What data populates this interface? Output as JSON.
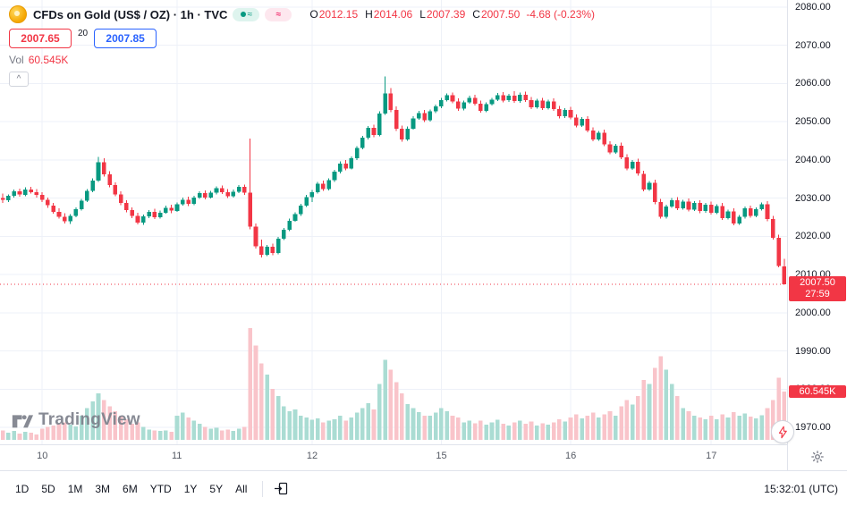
{
  "header": {
    "symbol_title": "CFDs on Gold (US$ / OZ) · 1h · TVC",
    "ohlc": {
      "o_label": "O",
      "o": "2012.15",
      "h_label": "H",
      "h": "2014.06",
      "l_label": "L",
      "l": "2007.39",
      "c_label": "C",
      "c": "2007.50",
      "change": "-4.68 (-0.23%)"
    },
    "bid": "2007.65",
    "spread": "20",
    "ask": "2007.85",
    "vol_label": "Vol",
    "vol_value": "60.545K",
    "wave_icon_glyph": "≈"
  },
  "price_scale": {
    "last_price": "2007.50",
    "countdown": "27:59",
    "volume_tag": "60.545K"
  },
  "watermark": {
    "brand": "TradingView"
  },
  "toolbar": {
    "ranges": [
      "1D",
      "5D",
      "1M",
      "3M",
      "6M",
      "YTD",
      "1Y",
      "5Y",
      "All"
    ],
    "clock": "15:32:01 (UTC)"
  },
  "colors": {
    "up": "#089981",
    "down": "#f23645",
    "vol_up": "#aadcd3",
    "vol_down": "#f9c4ca",
    "accent_blue": "#2962ff",
    "tag_red": "#f23645",
    "grid": "#eef1f8",
    "axis_text": "#131722",
    "muted": "#787b86"
  },
  "chart_data": {
    "type": "candlestick",
    "symbol": "CFDs on Gold (US$ / OZ)",
    "interval": "1h",
    "exchange": "TVC",
    "price_axis": {
      "min": 1970,
      "max": 2080
    },
    "y_ticks": [
      2080,
      2070,
      2060,
      2050,
      2040,
      2030,
      2020,
      2010,
      2000,
      1990,
      1980,
      1970
    ],
    "x_ticks": [
      {
        "label": "10",
        "index": 7
      },
      {
        "label": "11",
        "index": 31
      },
      {
        "label": "12",
        "index": 55
      },
      {
        "label": "15",
        "index": 78
      },
      {
        "label": "16",
        "index": 101
      },
      {
        "label": "17",
        "index": 126
      }
    ],
    "volume_axis_max": 140,
    "last_close": 2007.5,
    "last_volume_k": 60.545,
    "candles": [
      [
        2030.0,
        2031.2,
        2028.8,
        2029.5,
        12
      ],
      [
        2029.5,
        2031.0,
        2029.0,
        2030.6,
        9
      ],
      [
        2030.6,
        2032.2,
        2030.1,
        2031.8,
        11
      ],
      [
        2031.8,
        2032.5,
        2030.4,
        2030.9,
        8
      ],
      [
        2030.9,
        2032.8,
        2030.5,
        2032.3,
        10
      ],
      [
        2032.3,
        2033.0,
        2031.2,
        2031.6,
        9
      ],
      [
        2031.6,
        2032.4,
        2030.2,
        2030.8,
        7
      ],
      [
        2030.8,
        2031.5,
        2029.0,
        2029.6,
        14
      ],
      [
        2029.6,
        2030.2,
        2027.5,
        2028.1,
        16
      ],
      [
        2028.1,
        2028.8,
        2025.9,
        2026.4,
        18
      ],
      [
        2026.4,
        2027.3,
        2024.6,
        2025.1,
        20
      ],
      [
        2025.1,
        2026.0,
        2023.4,
        2023.9,
        22
      ],
      [
        2023.9,
        2025.8,
        2023.2,
        2025.3,
        19
      ],
      [
        2025.3,
        2027.6,
        2025.0,
        2027.1,
        17
      ],
      [
        2027.1,
        2029.8,
        2026.8,
        2029.3,
        30
      ],
      [
        2029.3,
        2032.4,
        2029.0,
        2031.9,
        40
      ],
      [
        2031.9,
        2035.2,
        2031.5,
        2034.6,
        48
      ],
      [
        2034.6,
        2040.8,
        2034.2,
        2039.4,
        58
      ],
      [
        2039.4,
        2040.5,
        2035.6,
        2036.2,
        50
      ],
      [
        2036.2,
        2037.0,
        2032.8,
        2033.4,
        42
      ],
      [
        2033.4,
        2034.1,
        2030.5,
        2031.0,
        36
      ],
      [
        2031.0,
        2031.8,
        2028.2,
        2028.7,
        30
      ],
      [
        2028.7,
        2029.5,
        2026.3,
        2026.9,
        26
      ],
      [
        2026.9,
        2027.6,
        2024.8,
        2025.4,
        20
      ],
      [
        2025.4,
        2026.2,
        2023.1,
        2023.6,
        22
      ],
      [
        2023.6,
        2025.7,
        2023.0,
        2025.2,
        16
      ],
      [
        2025.2,
        2026.9,
        2024.8,
        2026.4,
        13
      ],
      [
        2026.4,
        2027.2,
        2024.5,
        2025.0,
        12
      ],
      [
        2025.0,
        2026.7,
        2024.6,
        2026.2,
        11
      ],
      [
        2026.2,
        2028.0,
        2025.9,
        2027.5,
        12
      ],
      [
        2027.5,
        2028.3,
        2026.1,
        2026.7,
        10
      ],
      [
        2026.7,
        2028.9,
        2026.4,
        2028.4,
        30
      ],
      [
        2028.4,
        2030.1,
        2028.0,
        2029.6,
        34
      ],
      [
        2029.6,
        2030.4,
        2027.9,
        2028.5,
        28
      ],
      [
        2028.5,
        2030.6,
        2028.2,
        2030.1,
        24
      ],
      [
        2030.1,
        2031.8,
        2029.8,
        2031.3,
        20
      ],
      [
        2031.3,
        2032.0,
        2029.7,
        2030.2,
        16
      ],
      [
        2030.2,
        2031.9,
        2029.9,
        2031.4,
        14
      ],
      [
        2031.4,
        2033.1,
        2031.0,
        2032.6,
        15
      ],
      [
        2032.6,
        2033.3,
        2031.1,
        2031.6,
        12
      ],
      [
        2031.6,
        2032.4,
        2030.0,
        2030.5,
        13
      ],
      [
        2030.5,
        2032.2,
        2030.2,
        2031.7,
        11
      ],
      [
        2031.7,
        2033.4,
        2031.3,
        2032.9,
        14
      ],
      [
        2032.9,
        2033.6,
        2030.9,
        2031.4,
        16
      ],
      [
        2031.4,
        2045.6,
        2021.8,
        2022.5,
        140
      ],
      [
        2022.5,
        2023.4,
        2016.8,
        2017.4,
        118
      ],
      [
        2017.4,
        2019.2,
        2014.5,
        2015.2,
        96
      ],
      [
        2015.2,
        2017.8,
        2014.8,
        2017.3,
        82
      ],
      [
        2017.3,
        2018.1,
        2015.0,
        2015.6,
        64
      ],
      [
        2015.6,
        2019.9,
        2015.3,
        2019.4,
        55
      ],
      [
        2019.4,
        2022.2,
        2019.0,
        2021.7,
        42
      ],
      [
        2021.7,
        2024.6,
        2021.4,
        2024.1,
        36
      ],
      [
        2024.1,
        2026.3,
        2023.8,
        2025.8,
        38
      ],
      [
        2025.8,
        2028.5,
        2025.4,
        2028.0,
        30
      ],
      [
        2028.0,
        2030.8,
        2027.7,
        2030.3,
        28
      ],
      [
        2030.3,
        2032.1,
        2029.0,
        2031.6,
        25
      ],
      [
        2031.6,
        2034.3,
        2031.2,
        2033.8,
        27
      ],
      [
        2033.8,
        2034.6,
        2031.9,
        2032.4,
        22
      ],
      [
        2032.4,
        2035.2,
        2032.0,
        2034.7,
        24
      ],
      [
        2034.7,
        2037.4,
        2034.3,
        2036.9,
        26
      ],
      [
        2036.9,
        2039.6,
        2036.5,
        2039.1,
        30
      ],
      [
        2039.1,
        2040.0,
        2037.3,
        2037.8,
        24
      ],
      [
        2037.8,
        2040.9,
        2037.5,
        2040.4,
        28
      ],
      [
        2040.4,
        2043.6,
        2040.0,
        2043.1,
        34
      ],
      [
        2043.1,
        2046.3,
        2042.8,
        2045.8,
        40
      ],
      [
        2045.8,
        2048.9,
        2045.4,
        2048.4,
        46
      ],
      [
        2048.4,
        2049.2,
        2045.9,
        2046.5,
        38
      ],
      [
        2046.5,
        2052.7,
        2046.2,
        2052.2,
        70
      ],
      [
        2052.2,
        2061.9,
        2051.8,
        2057.4,
        100
      ],
      [
        2057.4,
        2058.8,
        2052.5,
        2053.1,
        88
      ],
      [
        2053.1,
        2054.0,
        2047.6,
        2048.2,
        72
      ],
      [
        2048.2,
        2049.0,
        2044.8,
        2045.4,
        58
      ],
      [
        2045.4,
        2048.7,
        2045.0,
        2048.2,
        45
      ],
      [
        2048.2,
        2051.4,
        2047.9,
        2050.9,
        40
      ],
      [
        2050.9,
        2052.8,
        2050.5,
        2052.3,
        35
      ],
      [
        2052.3,
        2053.1,
        2049.9,
        2050.4,
        30
      ],
      [
        2050.4,
        2053.2,
        2050.0,
        2052.7,
        30
      ],
      [
        2052.7,
        2054.5,
        2052.3,
        2054.0,
        34
      ],
      [
        2054.0,
        2056.2,
        2053.6,
        2055.7,
        40
      ],
      [
        2055.7,
        2057.4,
        2055.3,
        2056.9,
        36
      ],
      [
        2056.9,
        2057.7,
        2054.8,
        2055.3,
        30
      ],
      [
        2055.3,
        2056.1,
        2052.9,
        2053.4,
        28
      ],
      [
        2053.4,
        2055.6,
        2053.0,
        2055.1,
        22
      ],
      [
        2055.1,
        2056.8,
        2054.7,
        2056.3,
        24
      ],
      [
        2056.3,
        2057.1,
        2054.2,
        2054.7,
        21
      ],
      [
        2054.7,
        2055.5,
        2052.4,
        2052.9,
        24
      ],
      [
        2052.9,
        2055.1,
        2052.5,
        2054.6,
        19
      ],
      [
        2054.6,
        2056.3,
        2054.2,
        2055.8,
        22
      ],
      [
        2055.8,
        2057.5,
        2055.4,
        2057.0,
        25
      ],
      [
        2057.0,
        2057.8,
        2055.1,
        2055.6,
        20
      ],
      [
        2055.6,
        2057.3,
        2055.2,
        2056.8,
        18
      ],
      [
        2056.8,
        2058.0,
        2054.9,
        2055.4,
        22
      ],
      [
        2055.4,
        2057.6,
        2055.0,
        2057.1,
        24
      ],
      [
        2057.1,
        2057.9,
        2055.2,
        2055.7,
        20
      ],
      [
        2055.7,
        2056.5,
        2053.3,
        2053.8,
        23
      ],
      [
        2053.8,
        2056.0,
        2053.4,
        2055.5,
        18
      ],
      [
        2055.5,
        2056.3,
        2053.1,
        2053.6,
        21
      ],
      [
        2053.6,
        2055.8,
        2053.2,
        2055.3,
        19
      ],
      [
        2055.3,
        2056.1,
        2052.8,
        2053.3,
        22
      ],
      [
        2053.3,
        2054.1,
        2050.9,
        2051.4,
        26
      ],
      [
        2051.4,
        2053.6,
        2051.0,
        2053.1,
        23
      ],
      [
        2053.1,
        2053.9,
        2050.6,
        2051.1,
        28
      ],
      [
        2051.1,
        2051.9,
        2048.5,
        2049.0,
        32
      ],
      [
        2049.0,
        2051.2,
        2048.6,
        2050.7,
        27
      ],
      [
        2050.7,
        2051.5,
        2047.2,
        2047.7,
        30
      ],
      [
        2047.7,
        2048.5,
        2044.9,
        2045.4,
        34
      ],
      [
        2045.4,
        2047.6,
        2045.0,
        2047.1,
        28
      ],
      [
        2047.1,
        2047.9,
        2043.6,
        2044.1,
        32
      ],
      [
        2044.1,
        2044.9,
        2041.5,
        2042.0,
        36
      ],
      [
        2042.0,
        2044.2,
        2041.6,
        2043.7,
        30
      ],
      [
        2043.7,
        2044.5,
        2040.2,
        2040.7,
        42
      ],
      [
        2040.7,
        2041.5,
        2037.3,
        2037.8,
        50
      ],
      [
        2037.8,
        2040.0,
        2037.4,
        2039.5,
        44
      ],
      [
        2039.5,
        2040.3,
        2035.9,
        2036.4,
        55
      ],
      [
        2036.4,
        2037.2,
        2031.8,
        2032.3,
        75
      ],
      [
        2032.3,
        2034.5,
        2031.9,
        2034.0,
        70
      ],
      [
        2034.0,
        2034.8,
        2028.4,
        2029.0,
        90
      ],
      [
        2029.0,
        2029.8,
        2024.6,
        2025.1,
        105
      ],
      [
        2025.1,
        2028.3,
        2024.7,
        2027.8,
        88
      ],
      [
        2027.8,
        2030.0,
        2027.4,
        2029.5,
        70
      ],
      [
        2029.5,
        2030.3,
        2026.9,
        2027.4,
        55
      ],
      [
        2027.4,
        2029.6,
        2027.0,
        2029.1,
        40
      ],
      [
        2029.1,
        2029.9,
        2026.5,
        2027.0,
        36
      ],
      [
        2027.0,
        2029.2,
        2026.6,
        2028.7,
        30
      ],
      [
        2028.7,
        2029.5,
        2026.1,
        2026.6,
        28
      ],
      [
        2026.6,
        2028.8,
        2026.2,
        2028.3,
        26
      ],
      [
        2028.3,
        2029.1,
        2025.7,
        2026.2,
        30
      ],
      [
        2026.2,
        2028.4,
        2025.8,
        2027.9,
        26
      ],
      [
        2027.9,
        2028.7,
        2024.3,
        2024.8,
        32
      ],
      [
        2024.8,
        2027.0,
        2024.4,
        2026.5,
        28
      ],
      [
        2026.5,
        2027.3,
        2022.9,
        2023.4,
        35
      ],
      [
        2023.4,
        2025.6,
        2023.0,
        2025.1,
        30
      ],
      [
        2025.1,
        2027.8,
        2024.7,
        2027.3,
        33
      ],
      [
        2027.3,
        2028.1,
        2024.9,
        2025.4,
        29
      ],
      [
        2025.4,
        2027.6,
        2025.0,
        2027.1,
        27
      ],
      [
        2027.1,
        2028.9,
        2026.7,
        2028.4,
        31
      ],
      [
        2028.4,
        2029.2,
        2024.0,
        2024.5,
        40
      ],
      [
        2024.5,
        2025.3,
        2019.1,
        2019.6,
        50
      ],
      [
        2019.6,
        2020.4,
        2011.9,
        2012.3,
        78
      ],
      [
        2012.15,
        2014.06,
        2007.39,
        2007.5,
        60.545
      ]
    ]
  }
}
